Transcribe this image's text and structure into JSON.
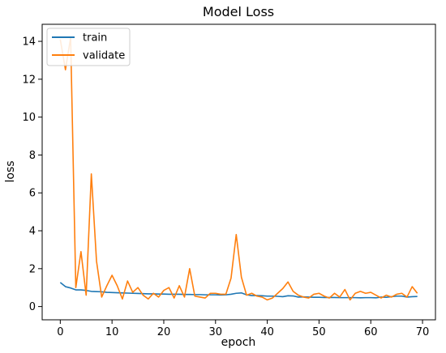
{
  "chart_data": {
    "type": "line",
    "title": "Model Loss",
    "xlabel": "epoch",
    "ylabel": "loss",
    "xlim": [
      -3.5,
      72.5
    ],
    "ylim": [
      -0.7,
      14.9
    ],
    "xticks": [
      0,
      10,
      20,
      30,
      40,
      50,
      60,
      70
    ],
    "yticks": [
      0,
      2,
      4,
      6,
      8,
      10,
      12,
      14
    ],
    "grid": false,
    "legend_position": "top-left",
    "x": [
      0,
      1,
      2,
      3,
      4,
      5,
      6,
      7,
      8,
      9,
      10,
      11,
      12,
      13,
      14,
      15,
      16,
      17,
      18,
      19,
      20,
      21,
      22,
      23,
      24,
      25,
      26,
      27,
      28,
      29,
      30,
      31,
      32,
      33,
      34,
      35,
      36,
      37,
      38,
      39,
      40,
      41,
      42,
      43,
      44,
      45,
      46,
      47,
      48,
      49,
      50,
      51,
      52,
      53,
      54,
      55,
      56,
      57,
      58,
      59,
      60,
      61,
      62,
      63,
      64,
      65,
      66,
      67,
      68,
      69
    ],
    "series": [
      {
        "name": "train",
        "color": "#1f77b4",
        "values": [
          1.27,
          1.05,
          0.98,
          0.88,
          0.88,
          0.85,
          0.8,
          0.79,
          0.78,
          0.75,
          0.74,
          0.73,
          0.72,
          0.71,
          0.7,
          0.69,
          0.68,
          0.67,
          0.67,
          0.66,
          0.66,
          0.65,
          0.65,
          0.65,
          0.64,
          0.64,
          0.63,
          0.63,
          0.62,
          0.62,
          0.62,
          0.61,
          0.62,
          0.65,
          0.7,
          0.72,
          0.62,
          0.58,
          0.58,
          0.57,
          0.55,
          0.55,
          0.54,
          0.52,
          0.57,
          0.56,
          0.5,
          0.51,
          0.5,
          0.49,
          0.49,
          0.48,
          0.48,
          0.48,
          0.47,
          0.47,
          0.47,
          0.47,
          0.46,
          0.47,
          0.47,
          0.46,
          0.5,
          0.49,
          0.52,
          0.55,
          0.55,
          0.5,
          0.52,
          0.53
        ]
      },
      {
        "name": "validate",
        "color": "#ff7f0e",
        "values": [
          14.1,
          12.5,
          14.2,
          1.0,
          2.9,
          0.6,
          7.0,
          2.4,
          0.5,
          1.1,
          1.65,
          1.1,
          0.4,
          1.35,
          0.75,
          1.0,
          0.6,
          0.4,
          0.7,
          0.5,
          0.85,
          1.0,
          0.45,
          1.1,
          0.5,
          2.0,
          0.55,
          0.5,
          0.45,
          0.7,
          0.7,
          0.65,
          0.65,
          1.5,
          3.8,
          1.55,
          0.6,
          0.7,
          0.55,
          0.5,
          0.35,
          0.45,
          0.7,
          0.95,
          1.3,
          0.8,
          0.6,
          0.5,
          0.45,
          0.65,
          0.7,
          0.55,
          0.45,
          0.7,
          0.5,
          0.9,
          0.35,
          0.7,
          0.8,
          0.7,
          0.75,
          0.6,
          0.45,
          0.6,
          0.5,
          0.65,
          0.7,
          0.5,
          1.05,
          0.7
        ]
      }
    ]
  }
}
